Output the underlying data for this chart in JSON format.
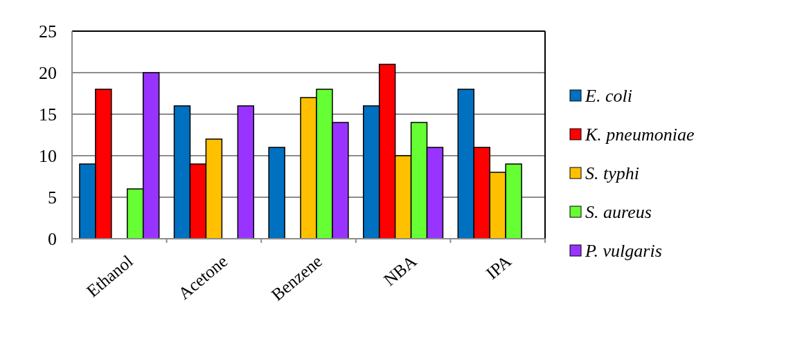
{
  "chart_data": {
    "type": "bar",
    "categories": [
      "Ethanol",
      "Acetone",
      "Benzene",
      "NBA",
      "IPA"
    ],
    "series": [
      {
        "name": "E. coli",
        "color": "#0070c0",
        "values": [
          9,
          16,
          11,
          16,
          18
        ]
      },
      {
        "name": "K. pneumoniae",
        "color": "#ff0000",
        "values": [
          18,
          9,
          null,
          21,
          11
        ]
      },
      {
        "name": "S. typhi",
        "color": "#ffc000",
        "values": [
          null,
          12,
          17,
          10,
          8
        ]
      },
      {
        "name": "S. aureus",
        "color": "#66ff33",
        "values": [
          6,
          null,
          18,
          14,
          9
        ]
      },
      {
        "name": "P. vulgaris",
        "color": "#9933ff",
        "values": [
          20,
          16,
          14,
          11,
          null
        ]
      }
    ],
    "ylim": [
      0,
      25
    ],
    "yticks": [
      0,
      5,
      10,
      15,
      20,
      25
    ],
    "grid": "y",
    "legend": "right"
  }
}
